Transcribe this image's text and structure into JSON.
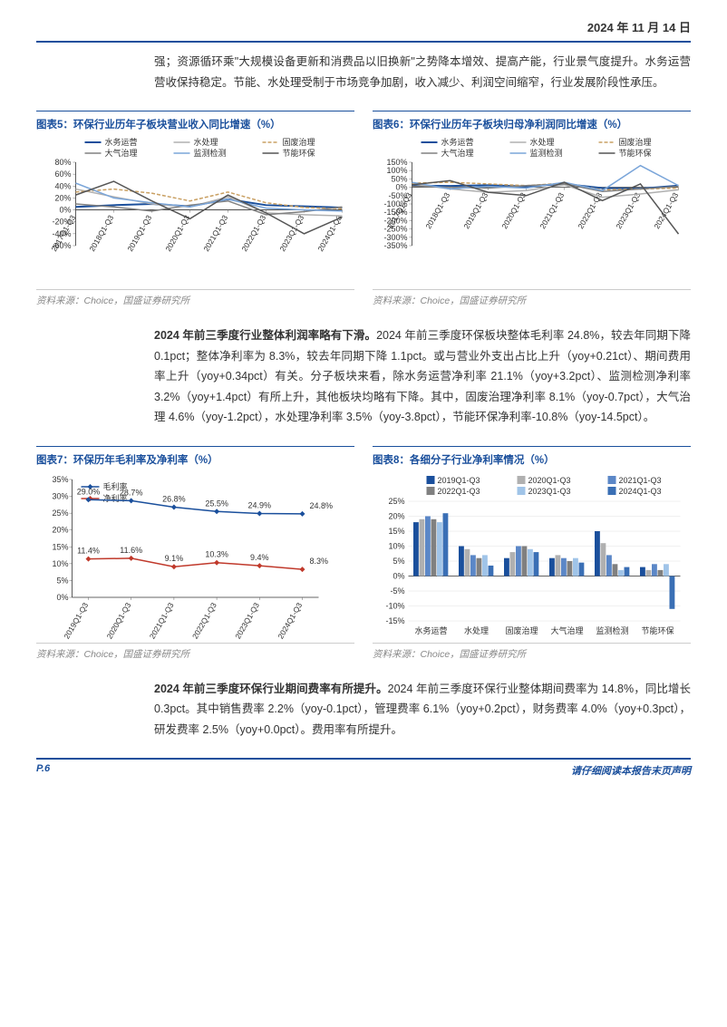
{
  "header": {
    "date": "2024 年 11 月 14 日"
  },
  "para1": "强；资源循环乘\"大规模设备更新和消费品以旧换新\"之势降本增效、提高产能，行业景气度提升。水务运营营收保持稳定。节能、水处理受制于市场竞争加剧，收入减少、利润空间缩窄，行业发展阶段性承压。",
  "para2_lead": "2024 年前三季度行业整体利润率略有下滑。",
  "para2": "2024 年前三季度环保板块整体毛利率 24.8%，较去年同期下降 0.1pct；整体净利率为 8.3%，较去年同期下降 1.1pct。或与营业外支出占比上升（yoy+0.21ct）、期间费用率上升（yoy+0.34pct）有关。分子板块来看，除水务运营净利率 21.1%（yoy+3.2pct）、监测检测净利率 3.2%（yoy+1.4pct）有所上升，其他板块均略有下降。其中，固废治理净利率 8.1%（yoy-0.7pct），大气治理 4.6%（yoy-1.2pct），水处理净利率 3.5%（yoy-3.8pct），节能环保净利率-10.8%（yoy-14.5pct）。",
  "para3_lead": "2024 年前三季度环保行业期间费率有所提升。",
  "para3": "2024 年前三季度环保行业整体期间费率为 14.8%，同比增长 0.3pct。其中销售费率 2.2%（yoy-0.1pct），管理费率 6.1%（yoy+0.2pct），财务费率 4.0%（yoy+0.3pct），研发费率 2.5%（yoy+0.0pct）。费用率有所提升。",
  "chart5": {
    "title": "图表5：环保行业历年子板块营业收入同比增速（%）",
    "source": "资料来源：Choice，国盛证券研究所",
    "type": "line",
    "categories": [
      "2017Q1-Q3",
      "2018Q1-Q3",
      "2019Q1-Q3",
      "2020Q1-Q3",
      "2021Q1-Q3",
      "2022Q1-Q3",
      "2023Q1-Q3",
      "2024Q1-Q3"
    ],
    "series": [
      {
        "name": "水务运营",
        "color": "#1a4f9c",
        "dash": "",
        "width": 2,
        "values": [
          5,
          8,
          10,
          6,
          18,
          8,
          6,
          4
        ]
      },
      {
        "name": "水处理",
        "color": "#b0b0b0",
        "dash": "",
        "width": 1.5,
        "values": [
          35,
          22,
          10,
          5,
          22,
          -5,
          -8,
          -10
        ]
      },
      {
        "name": "固废治理",
        "color": "#c9a063",
        "dash": "4,2",
        "width": 1.5,
        "values": [
          30,
          35,
          28,
          15,
          30,
          12,
          4,
          2
        ]
      },
      {
        "name": "大气治理",
        "color": "#808080",
        "dash": "",
        "width": 1.5,
        "values": [
          10,
          5,
          -2,
          8,
          15,
          -8,
          -3,
          5
        ]
      },
      {
        "name": "监测检测",
        "color": "#7aa5d9",
        "dash": "",
        "width": 1.5,
        "values": [
          45,
          20,
          12,
          5,
          18,
          3,
          0,
          -2
        ]
      },
      {
        "name": "节能环保",
        "color": "#555555",
        "dash": "",
        "width": 1.5,
        "values": [
          25,
          48,
          15,
          -15,
          25,
          -5,
          -40,
          -12
        ]
      }
    ],
    "ylim": [
      -60,
      80
    ],
    "ytick_step": 20,
    "grid_color": "#e0e0e0",
    "label_fontsize": 9
  },
  "chart6": {
    "title": "图表6：环保行业历年子板块归母净利润同比增速（%）",
    "source": "资料来源：Choice，国盛证券研究所",
    "type": "line",
    "categories": [
      "2017Q1-Q3",
      "2018Q1-Q3",
      "2019Q1-Q3",
      "2020Q1-Q3",
      "2021Q1-Q3",
      "2022Q1-Q3",
      "2023Q1-Q3",
      "2024Q1-Q3"
    ],
    "series": [
      {
        "name": "水务运营",
        "color": "#1a4f9c",
        "dash": "",
        "width": 2,
        "values": [
          10,
          8,
          12,
          5,
          20,
          -5,
          -8,
          10
        ]
      },
      {
        "name": "水处理",
        "color": "#b0b0b0",
        "dash": "",
        "width": 1.5,
        "values": [
          20,
          -10,
          -30,
          -20,
          15,
          -60,
          -40,
          -15
        ]
      },
      {
        "name": "固废治理",
        "color": "#c9a063",
        "dash": "4,2",
        "width": 1.5,
        "values": [
          25,
          30,
          20,
          10,
          25,
          -15,
          -10,
          -5
        ]
      },
      {
        "name": "大气治理",
        "color": "#808080",
        "dash": "",
        "width": 1.5,
        "values": [
          5,
          0,
          -5,
          10,
          20,
          -25,
          -10,
          5
        ]
      },
      {
        "name": "监测检测",
        "color": "#7aa5d9",
        "dash": "",
        "width": 1.5,
        "values": [
          30,
          -10,
          5,
          -5,
          30,
          -20,
          130,
          10
        ]
      },
      {
        "name": "节能环保",
        "color": "#555555",
        "dash": "",
        "width": 1.5,
        "values": [
          15,
          40,
          -30,
          -50,
          30,
          -80,
          20,
          -280
        ]
      }
    ],
    "ylim": [
      -350,
      150
    ],
    "ytick_step": 50,
    "grid_color": "#e0e0e0",
    "label_fontsize": 9
  },
  "chart7": {
    "title": "图表7：环保历年毛利率及净利率（%）",
    "source": "资料来源：Choice，国盛证券研究所",
    "type": "line",
    "categories": [
      "2019Q1-Q3",
      "2020Q1-Q3",
      "2021Q1-Q3",
      "2022Q1-Q3",
      "2023Q1-Q3",
      "2024Q1-Q3"
    ],
    "series": [
      {
        "name": "毛利率",
        "color": "#1a4f9c",
        "marker": "diamond",
        "values": [
          29.0,
          28.7,
          26.8,
          25.5,
          24.9,
          24.8
        ],
        "labels": [
          "29.0%",
          "28.7%",
          "26.8%",
          "25.5%",
          "24.9%",
          "24.8%"
        ]
      },
      {
        "name": "净利率",
        "color": "#c0392b",
        "marker": "diamond",
        "values": [
          11.4,
          11.6,
          9.1,
          10.3,
          9.4,
          8.3
        ],
        "labels": [
          "11.4%",
          "11.6%",
          "9.1%",
          "10.3%",
          "9.4%",
          "8.3%"
        ]
      }
    ],
    "ylim": [
      0,
      35
    ],
    "ytick_step": 5,
    "grid_color": "#e0e0e0",
    "label_fontsize": 9
  },
  "chart8": {
    "title": "图表8：各细分子行业净利率情况（%）",
    "source": "资料来源：Choice，国盛证券研究所",
    "type": "bar",
    "categories": [
      "水务运营",
      "水处理",
      "固废治理",
      "大气治理",
      "监测检测",
      "节能环保"
    ],
    "series": [
      {
        "name": "2019Q1-Q3",
        "color": "#1a4f9c",
        "values": [
          18,
          10,
          6,
          6,
          15,
          3
        ]
      },
      {
        "name": "2020Q1-Q3",
        "color": "#b0b0b0",
        "values": [
          19,
          9,
          8,
          7,
          11,
          2
        ]
      },
      {
        "name": "2021Q1-Q3",
        "color": "#5b87c7",
        "values": [
          20,
          7,
          10,
          6,
          7,
          4
        ]
      },
      {
        "name": "2022Q1-Q3",
        "color": "#808080",
        "values": [
          19,
          6,
          10,
          5,
          4,
          2
        ]
      },
      {
        "name": "2023Q1-Q3",
        "color": "#a0c4e8",
        "values": [
          18,
          7,
          9,
          6,
          2,
          4
        ]
      },
      {
        "name": "2024Q1-Q3",
        "color": "#3a6fb5",
        "values": [
          21,
          3.5,
          8,
          4.5,
          3,
          -11
        ]
      }
    ],
    "ylim": [
      -15,
      25
    ],
    "ytick_step": 5,
    "grid_color": "#e0e0e0",
    "label_fontsize": 9
  },
  "footer": {
    "left": "P.6",
    "right": "请仔细阅读本报告末页声明"
  }
}
